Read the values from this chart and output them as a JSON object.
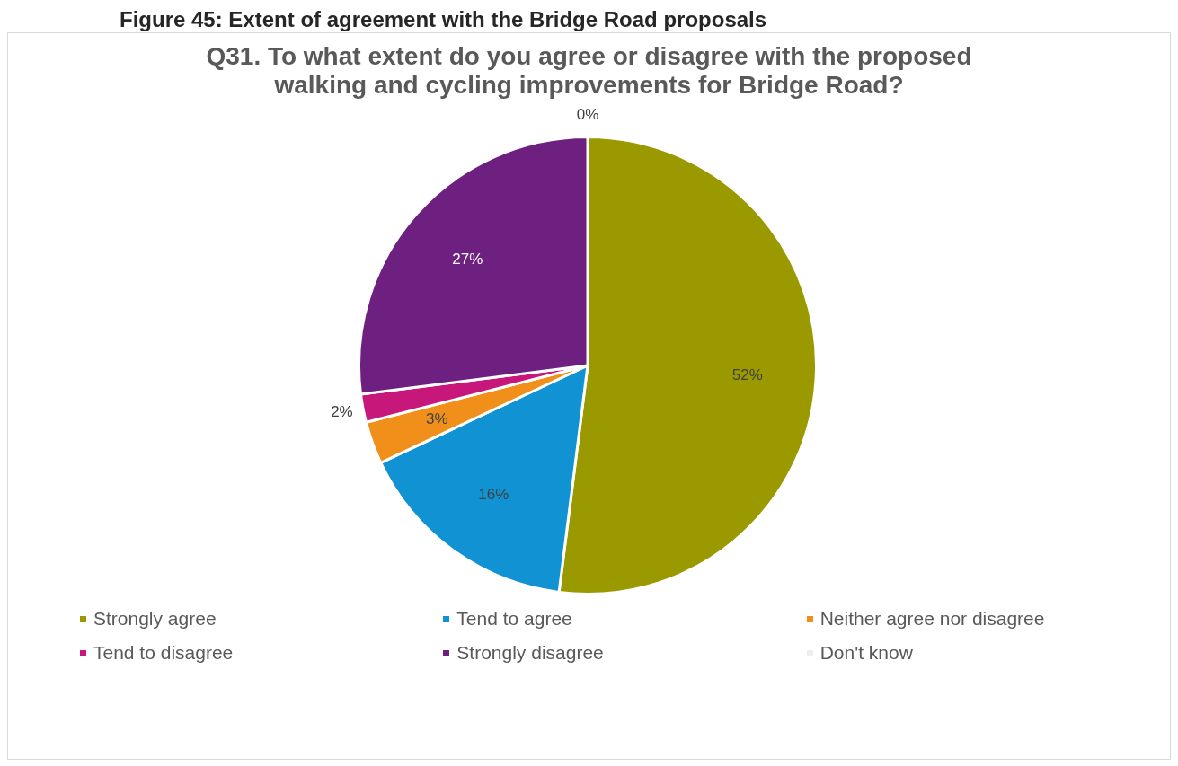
{
  "chart_data": {
    "type": "pie",
    "title": "Figure 45: Extent of agreement with the Bridge Road proposals",
    "subtitle": "Q31. To what extent do you agree or disagree with the proposed walking and cycling improvements for Bridge Road?",
    "categories": [
      "Strongly agree",
      "Tend to agree",
      "Neither agree nor disagree",
      "Tend to disagree",
      "Strongly disagree",
      "Don't know"
    ],
    "values": [
      52,
      16,
      3,
      2,
      27,
      0
    ],
    "colors": [
      "#9a9a00",
      "#1192d2",
      "#f0901a",
      "#c8177a",
      "#6e2080",
      "#eeeeee"
    ],
    "value_labels": [
      "52%",
      "16%",
      "3%",
      "2%",
      "27%",
      "0%"
    ],
    "legend": "bottom"
  }
}
